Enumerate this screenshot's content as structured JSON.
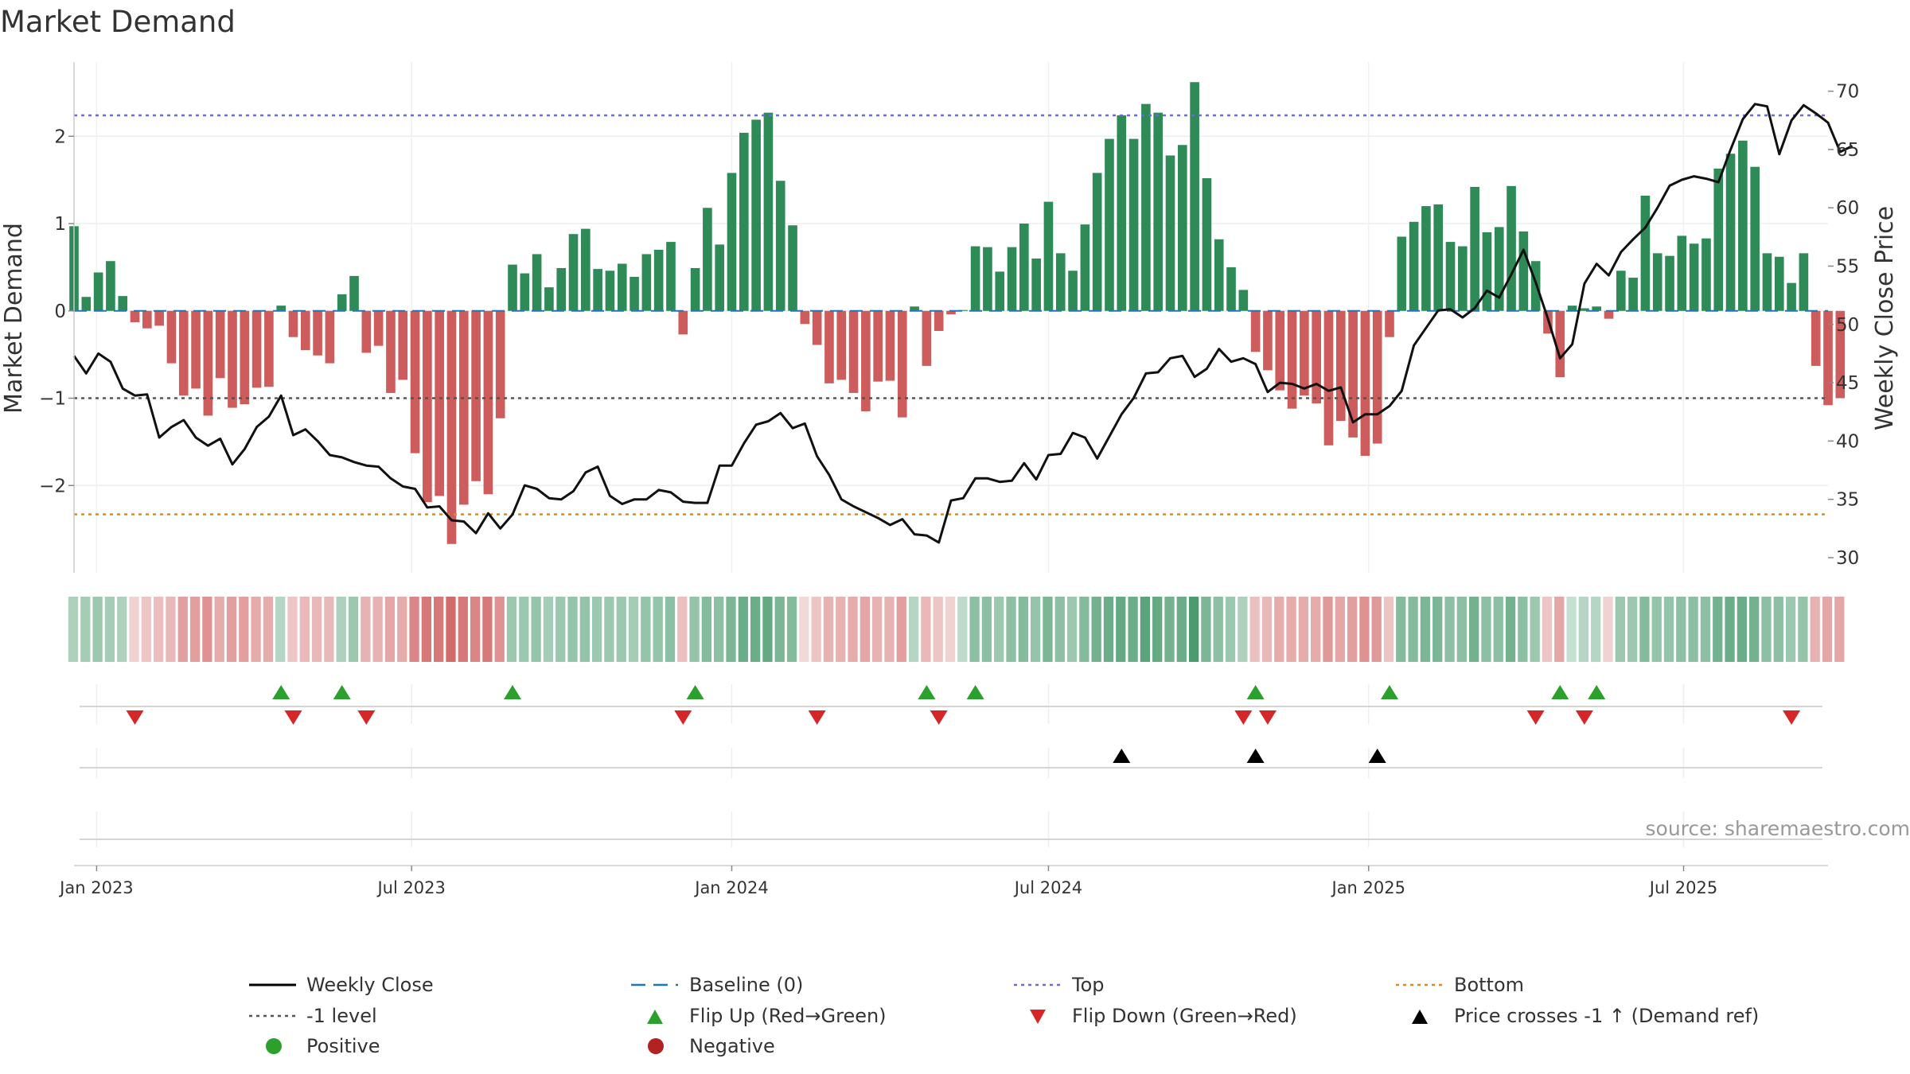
{
  "chart_data": {
    "type": "bar",
    "title": "Market Demand",
    "ylabel": "Market Demand",
    "y2label": "Weekly Close Price",
    "ylim": [
      -3.0,
      2.85
    ],
    "y2lim": [
      28.7,
      72.5
    ],
    "yticks": [
      2,
      1,
      0,
      -1,
      -2
    ],
    "y2ticks": [
      70,
      65,
      60,
      55,
      50,
      45,
      40,
      35,
      30
    ],
    "reference_lines": {
      "top": 2.24,
      "bottom": -2.33,
      "level": -1,
      "baseline": 0
    },
    "x_range": [
      "2022-12-19",
      "2025-09-22"
    ],
    "xtick_labels": [
      "Jan 2023",
      "Jul 2023",
      "Jan 2024",
      "Jul 2024",
      "Jan 2025",
      "Jul 2025"
    ],
    "xtick_dates": [
      "2023-01-01",
      "2023-07-01",
      "2024-01-01",
      "2024-07-01",
      "2025-01-01",
      "2025-07-01"
    ],
    "first_week": "2022-12-19",
    "demand": [
      0.97,
      0.16,
      0.44,
      0.57,
      0.17,
      -0.13,
      -0.2,
      -0.17,
      -0.6,
      -0.97,
      -0.89,
      -1.2,
      -0.77,
      -1.11,
      -1.07,
      -0.88,
      -0.87,
      0.06,
      -0.3,
      -0.45,
      -0.51,
      -0.6,
      0.19,
      0.4,
      -0.48,
      -0.4,
      -0.94,
      -0.79,
      -1.63,
      -2.19,
      -2.12,
      -2.67,
      -2.22,
      -1.95,
      -2.1,
      -1.23,
      0.53,
      0.43,
      0.65,
      0.27,
      0.49,
      0.88,
      0.94,
      0.48,
      0.46,
      0.54,
      0.39,
      0.65,
      0.7,
      0.79,
      -0.27,
      0.49,
      1.18,
      0.76,
      1.58,
      2.04,
      2.19,
      2.27,
      1.49,
      0.98,
      -0.15,
      -0.39,
      -0.83,
      -0.79,
      -0.94,
      -1.15,
      -0.81,
      -0.8,
      -1.22,
      0.05,
      -0.63,
      -0.23,
      -0.04,
      0.01,
      0.74,
      0.73,
      0.45,
      0.73,
      1.0,
      0.6,
      1.25,
      0.66,
      0.46,
      0.99,
      1.58,
      1.97,
      2.24,
      1.97,
      2.37,
      2.27,
      1.78,
      1.9,
      2.62,
      1.52,
      0.82,
      0.5,
      0.24,
      -0.47,
      -0.68,
      -0.91,
      -1.12,
      -0.97,
      -1.06,
      -1.54,
      -1.26,
      -1.45,
      -1.66,
      -1.52,
      -0.3,
      0.85,
      1.02,
      1.2,
      1.22,
      0.79,
      0.74,
      1.42,
      0.9,
      0.96,
      1.43,
      0.91,
      0.57,
      -0.26,
      -0.76,
      0.06,
      0.03,
      0.05,
      -0.09,
      0.46,
      0.38,
      1.32,
      0.66,
      0.63,
      0.86,
      0.77,
      0.83,
      1.63,
      1.8,
      1.95,
      1.65,
      0.66,
      0.62,
      0.32,
      0.66,
      -0.63,
      -1.08,
      -1.0
    ],
    "close": [
      47.3,
      45.8,
      47.5,
      46.8,
      44.5,
      43.9,
      44.0,
      40.3,
      41.2,
      41.8,
      40.3,
      39.6,
      40.2,
      38.0,
      39.3,
      41.2,
      42.1,
      43.9,
      40.5,
      41.0,
      40.0,
      38.8,
      38.6,
      38.2,
      37.9,
      37.8,
      36.8,
      36.1,
      35.9,
      34.3,
      34.4,
      33.2,
      33.1,
      32.1,
      33.8,
      32.5,
      33.7,
      36.2,
      35.9,
      35.1,
      35.0,
      35.7,
      37.3,
      37.8,
      35.3,
      34.6,
      35.0,
      35.0,
      35.8,
      35.6,
      34.8,
      34.7,
      34.7,
      37.9,
      37.9,
      39.8,
      41.4,
      41.7,
      42.4,
      41.1,
      41.5,
      38.7,
      37.1,
      35.0,
      34.4,
      33.9,
      33.4,
      32.8,
      33.3,
      32.0,
      31.9,
      31.3,
      34.9,
      35.1,
      36.8,
      36.8,
      36.5,
      36.6,
      38.1,
      36.7,
      38.8,
      38.9,
      40.7,
      40.3,
      38.5,
      40.4,
      42.3,
      43.7,
      45.8,
      45.9,
      47.1,
      47.3,
      45.5,
      46.2,
      47.9,
      46.8,
      47.1,
      46.6,
      44.2,
      45.0,
      44.9,
      44.5,
      44.9,
      44.3,
      44.6,
      41.6,
      42.3,
      42.3,
      43.0,
      44.3,
      48.2,
      49.7,
      51.2,
      51.3,
      50.6,
      51.4,
      52.9,
      52.3,
      54.3,
      56.4,
      53.6,
      50.5,
      47.1,
      48.3,
      53.5,
      55.2,
      54.2,
      56.2,
      57.3,
      58.3,
      60.0,
      61.9,
      62.4,
      62.7,
      62.5,
      62.2,
      65.0,
      67.6,
      68.9,
      68.7,
      64.6,
      67.5,
      68.8,
      68.1,
      67.3,
      64.8,
      65.3
    ],
    "zone_sentiment": [
      0.35,
      0.4,
      0.45,
      0.4,
      0.35,
      0.2,
      0.3,
      0.35,
      0.4,
      0.6,
      0.6,
      0.7,
      0.5,
      0.6,
      0.6,
      0.5,
      0.5,
      0.3,
      0.3,
      0.4,
      0.4,
      0.4,
      0.35,
      0.45,
      0.45,
      0.45,
      0.55,
      0.5,
      0.8,
      0.9,
      0.9,
      1.0,
      0.9,
      0.8,
      0.9,
      0.7,
      0.45,
      0.45,
      0.5,
      0.4,
      0.45,
      0.5,
      0.5,
      0.45,
      0.45,
      0.45,
      0.4,
      0.5,
      0.5,
      0.55,
      0.35,
      0.5,
      0.6,
      0.55,
      0.65,
      0.75,
      0.75,
      0.8,
      0.65,
      0.6,
      0.15,
      0.3,
      0.45,
      0.45,
      0.5,
      0.55,
      0.45,
      0.45,
      0.6,
      0.3,
      0.4,
      0.3,
      0.2,
      0.25,
      0.55,
      0.55,
      0.45,
      0.55,
      0.6,
      0.5,
      0.65,
      0.55,
      0.45,
      0.6,
      0.7,
      0.75,
      0.8,
      0.75,
      0.85,
      0.8,
      0.7,
      0.75,
      0.95,
      0.65,
      0.55,
      0.45,
      0.35,
      0.35,
      0.4,
      0.5,
      0.5,
      0.5,
      0.5,
      0.65,
      0.55,
      0.6,
      0.7,
      0.65,
      0.3,
      0.6,
      0.6,
      0.65,
      0.65,
      0.55,
      0.55,
      0.7,
      0.55,
      0.55,
      0.7,
      0.55,
      0.45,
      0.3,
      0.55,
      0.2,
      0.3,
      0.3,
      0.2,
      0.45,
      0.45,
      0.6,
      0.5,
      0.5,
      0.55,
      0.55,
      0.55,
      0.7,
      0.75,
      0.75,
      0.7,
      0.55,
      0.55,
      0.45,
      0.5,
      0.45,
      0.55,
      0.55
    ],
    "flip_up_weeks": [
      17,
      22,
      36,
      51,
      70,
      74,
      97,
      108,
      122,
      125
    ],
    "flip_down_weeks": [
      5,
      18,
      24,
      50,
      61,
      71,
      96,
      98,
      120,
      124,
      141
    ],
    "price_cross_weeks": [
      86,
      97,
      107
    ],
    "colors": {
      "positive": "#2e8b57",
      "negative": "#cd5c5c",
      "top": "#6b6bd6",
      "bottom": "#e08a1e",
      "level": "#555555",
      "baseline": "#1f77b4",
      "flip_up": "#2ca02c",
      "flip_down": "#d62728",
      "cross": "#000000",
      "zone_pos": "#2e8b57",
      "zone_neg": "#cd5c5c",
      "legend_positive": "#2ca02c",
      "legend_negative": "#b22222"
    }
  },
  "source": "source: sharemaestro.com",
  "legend": {
    "weekly_close": "Weekly Close",
    "baseline": "Baseline (0)",
    "top": "Top",
    "bottom": "Bottom",
    "level": "-1 level",
    "flip_up": "Flip Up (Red→Green)",
    "flip_down": "Flip Down (Green→Red)",
    "price_cross": "Price crosses -1 ↑ (Demand ref)",
    "positive": "Positive",
    "negative": "Negative"
  }
}
